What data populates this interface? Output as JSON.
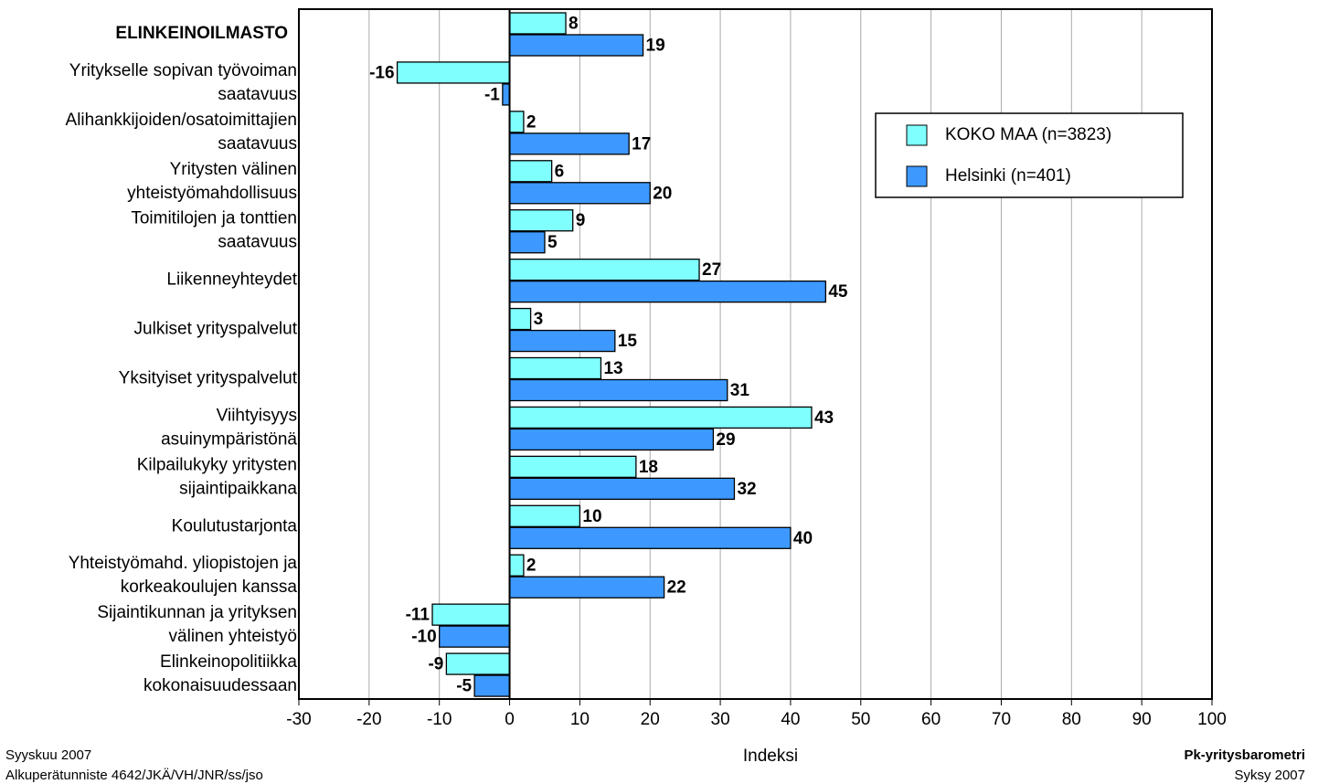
{
  "chart_data": {
    "type": "bar",
    "orientation": "horizontal",
    "categories": [
      [
        "ELINKEINOILMASTO"
      ],
      [
        "Yritykselle sopivan työvoiman",
        "saatavuus"
      ],
      [
        "Alihankkijoiden/osatoimittajien",
        "saatavuus"
      ],
      [
        "Yritysten välinen",
        "yhteistyömahdollisuus"
      ],
      [
        "Toimitilojen ja tonttien",
        "saatavuus"
      ],
      [
        "Liikenneyhteydet"
      ],
      [
        "Julkiset yrityspalvelut"
      ],
      [
        "Yksityiset yrityspalvelut"
      ],
      [
        "Viihtyisyys",
        "asuinympäristönä"
      ],
      [
        "Kilpailukyky yritysten",
        "sijaintipaikkana"
      ],
      [
        "Koulutustarjonta"
      ],
      [
        "Yhteistyömahd. yliopistojen ja",
        "korkeakoulujen kanssa"
      ],
      [
        "Sijaintikunnan ja yrityksen",
        "välinen yhteistyö"
      ],
      [
        "Elinkeinopolitiikka",
        "kokonaisuudessaan"
      ]
    ],
    "series": [
      {
        "name": "KOKO MAA (n=3823)",
        "color": "#80ffff",
        "values": [
          8,
          -16,
          2,
          6,
          9,
          27,
          3,
          13,
          43,
          18,
          10,
          2,
          -11,
          -9
        ]
      },
      {
        "name": "Helsinki (n=401)",
        "color": "#3d99ff",
        "values": [
          19,
          -1,
          17,
          20,
          5,
          45,
          15,
          31,
          29,
          32,
          40,
          22,
          -10,
          -5
        ]
      }
    ],
    "xlim": [
      -30,
      100
    ],
    "xticks": [
      -30,
      -20,
      -10,
      0,
      10,
      20,
      30,
      40,
      50,
      60,
      70,
      80,
      90,
      100
    ],
    "xlabel": "Indeksi",
    "grid": true,
    "legend": "upper right",
    "footer": {
      "date": "Syyskuu 2007",
      "id": "Alkuperätunniste 4642/JKÄ/VH/JNR/ss/jso",
      "brand": "Pk-yritysbarometri",
      "season": "Syksy 2007"
    }
  }
}
